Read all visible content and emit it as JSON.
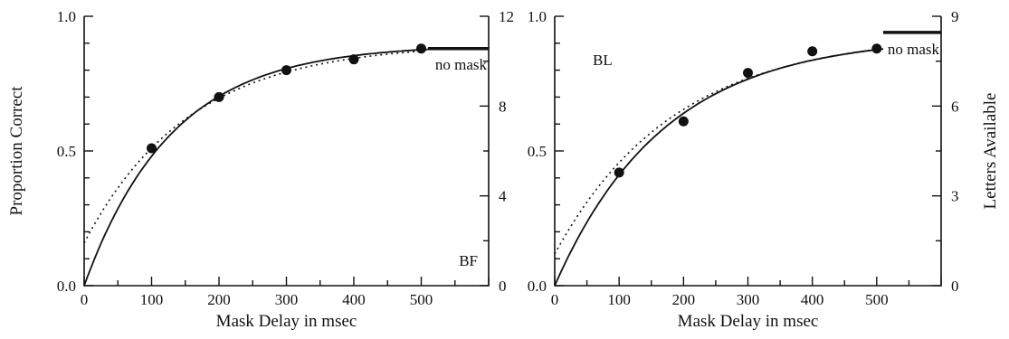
{
  "chart_data": [
    {
      "type": "scatter",
      "panel_label": "BF",
      "xlabel": "Mask Delay in msec",
      "ylabel": "Proportion Correct",
      "y2label": "",
      "xlim": [
        0,
        600
      ],
      "ylim": [
        0,
        1
      ],
      "y2lim": [
        0,
        12
      ],
      "x_ticks": [
        0,
        100,
        200,
        300,
        400,
        500
      ],
      "x_tick_labels": [
        "0",
        "100",
        "200",
        "300",
        "400",
        "500"
      ],
      "y_ticks": [
        0,
        0.5,
        1
      ],
      "y_tick_labels": [
        "0.0",
        "0.5",
        "1.0"
      ],
      "y2_ticks": [
        0,
        4,
        8,
        12
      ],
      "y2_tick_labels": [
        "0",
        "4",
        "8",
        "12"
      ],
      "points": {
        "x": [
          100,
          200,
          300,
          400,
          500
        ],
        "y": [
          0.51,
          0.7,
          0.8,
          0.84,
          0.88
        ]
      },
      "solid_curve": {
        "asymptote": 0.895,
        "tau": 130,
        "x0": 0
      },
      "dotted_curve": {
        "asymptote": 0.9,
        "tau": 155,
        "x0": -30
      },
      "no_mask": {
        "label": "no mask",
        "y": 0.88,
        "x_start": 510,
        "x_end": 600
      }
    },
    {
      "type": "scatter",
      "panel_label": "BL",
      "xlabel": "Mask Delay in msec",
      "ylabel": "",
      "y2label": "Letters Available",
      "xlim": [
        0,
        600
      ],
      "ylim": [
        0,
        1
      ],
      "y2lim": [
        0,
        9
      ],
      "x_ticks": [
        0,
        100,
        200,
        300,
        400,
        500
      ],
      "x_tick_labels": [
        "0",
        "100",
        "200",
        "300",
        "400",
        "500"
      ],
      "y_ticks": [
        0,
        0.5,
        1
      ],
      "y_tick_labels": [
        "0.0",
        "0.5",
        "1.0"
      ],
      "y2_ticks": [
        0,
        3,
        6,
        9
      ],
      "y2_tick_labels": [
        "0",
        "3",
        "6",
        "9"
      ],
      "points": {
        "x": [
          100,
          200,
          300,
          400,
          500
        ],
        "y": [
          0.42,
          0.61,
          0.79,
          0.87,
          0.88
        ]
      },
      "solid_curve": {
        "asymptote": 0.925,
        "tau": 170,
        "x0": 0
      },
      "dotted_curve": {
        "asymptote": 0.93,
        "tau": 185,
        "x0": -25
      },
      "no_mask": {
        "label": "no mask",
        "y": 0.94,
        "x_start": 510,
        "x_end": 600
      }
    }
  ]
}
